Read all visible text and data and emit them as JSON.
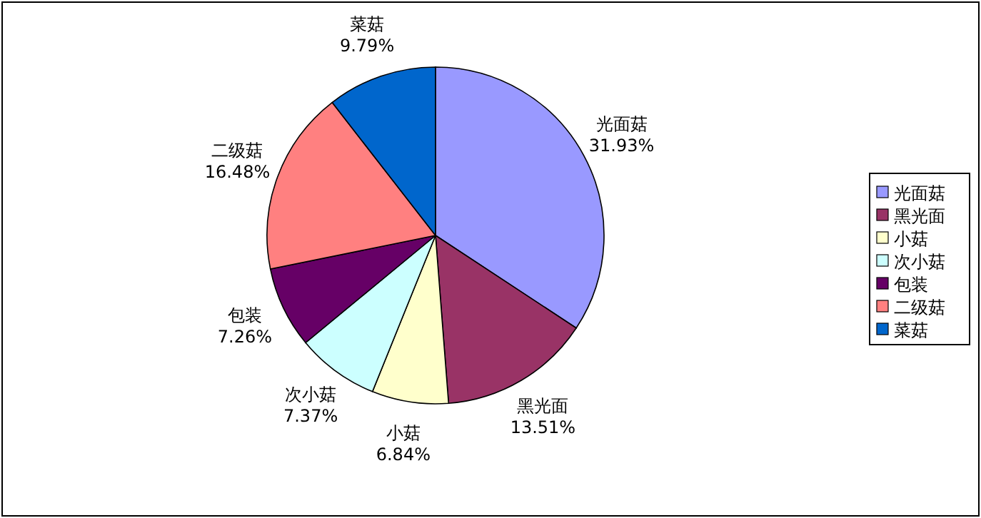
{
  "chart_data": {
    "type": "pie",
    "categories": [
      "光面菇",
      "黑光面",
      "小菇",
      "次小菇",
      "包装",
      "二级菇",
      "菜菇"
    ],
    "values": [
      31.93,
      13.51,
      6.84,
      7.37,
      7.26,
      16.48,
      9.79
    ],
    "value_labels": [
      "31.93%",
      "13.51%",
      "6.84%",
      "7.37%",
      "7.26%",
      "16.48%",
      "9.79%"
    ],
    "colors": [
      "#9999ff",
      "#993366",
      "#ffffcc",
      "#ccffff",
      "#660066",
      "#ff8080",
      "#0066cc"
    ],
    "legend": "right"
  }
}
